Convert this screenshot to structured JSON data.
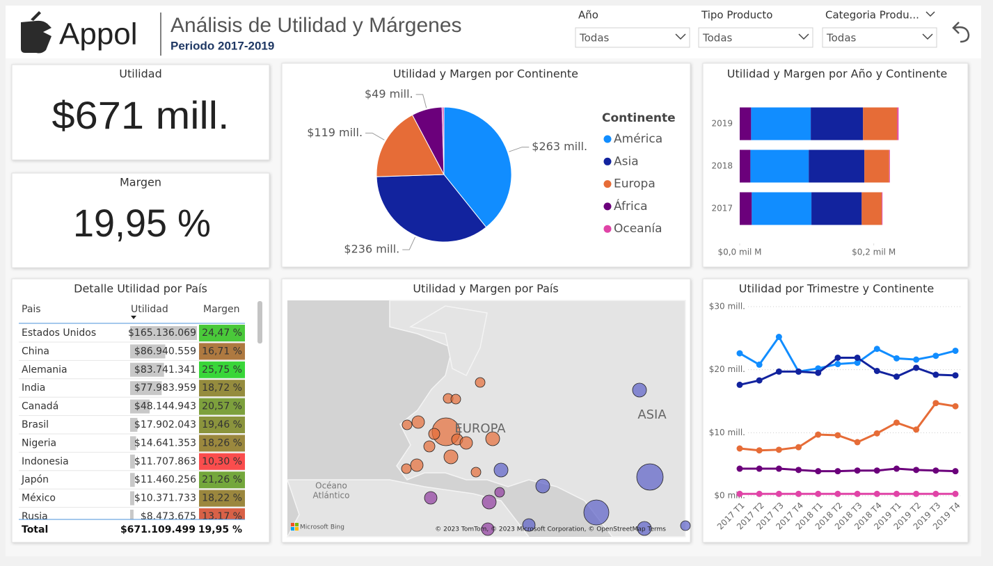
{
  "header": {
    "logo": "Appol",
    "title": "Análisis de Utilidad y Márgenes",
    "subtitle": "Periodo 2017-2019"
  },
  "filters": [
    {
      "label": "Año",
      "value": "Todas"
    },
    {
      "label": "Tipo Producto",
      "value": "Todas"
    },
    {
      "label": "Categoria Produ...",
      "value": "Todas"
    }
  ],
  "kpis": [
    {
      "title": "Utilidad",
      "value": "$671 mill."
    },
    {
      "title": "Margen",
      "value": "19,95 %"
    }
  ],
  "table": {
    "title": "Detalle Utilidad por País",
    "columns": [
      "Pais",
      "Utilidad",
      "Margen"
    ],
    "rows": [
      {
        "pais": "Estados Unidos",
        "utilidad": {
          "value": 165136069,
          "label": "$165.136.069"
        },
        "margen": {
          "value": 24.47,
          "label": "24,47 %"
        }
      },
      {
        "pais": "China",
        "utilidad": {
          "value": 86940559,
          "label": "$86.940.559"
        },
        "margen": {
          "value": 16.71,
          "label": "16,71 %"
        }
      },
      {
        "pais": "Alemania",
        "utilidad": {
          "value": 83741341,
          "label": "$83.741.341"
        },
        "margen": {
          "value": 25.75,
          "label": "25,75 %"
        }
      },
      {
        "pais": "India",
        "utilidad": {
          "value": 77983959,
          "label": "$77.983.959"
        },
        "margen": {
          "value": 18.72,
          "label": "18,72 %"
        }
      },
      {
        "pais": "Canadá",
        "utilidad": {
          "value": 48144943,
          "label": "$48.144.943"
        },
        "margen": {
          "value": 20.57,
          "label": "20,57 %"
        }
      },
      {
        "pais": "Brasil",
        "utilidad": {
          "value": 17902043,
          "label": "$17.902.043"
        },
        "margen": {
          "value": 19.46,
          "label": "19,46 %"
        }
      },
      {
        "pais": "Nigeria",
        "utilidad": {
          "value": 14641353,
          "label": "$14.641.353"
        },
        "margen": {
          "value": 18.26,
          "label": "18,26 %"
        }
      },
      {
        "pais": "Indonesia",
        "utilidad": {
          "value": 11707863,
          "label": "$11.707.863"
        },
        "margen": {
          "value": 10.3,
          "label": "10,30 %"
        }
      },
      {
        "pais": "Japón",
        "utilidad": {
          "value": 11460256,
          "label": "$11.460.256"
        },
        "margen": {
          "value": 21.26,
          "label": "21,26 %"
        }
      },
      {
        "pais": "México",
        "utilidad": {
          "value": 10371733,
          "label": "$10.371.733"
        },
        "margen": {
          "value": 18.22,
          "label": "18,22 %"
        }
      },
      {
        "pais": "Rusia",
        "utilidad": {
          "value": 8473675,
          "label": "$8.473.675"
        },
        "margen": {
          "value": 13.17,
          "label": "13,17 %"
        }
      }
    ],
    "total": [
      "Total",
      "$671.109.499",
      "19,95 %"
    ]
  },
  "map": {
    "title": "Utilidad y Margen por País",
    "labels": [
      "EUROPA",
      "ASIA",
      "Océano",
      "Atlántico"
    ],
    "provider": "Microsoft Bing",
    "attribution": "© 2023 TomTom, © 2023 Microsoft Corporation, © OpenStreetMap  Terms"
  },
  "chart_data": [
    {
      "type": "pie",
      "title": "Utilidad y Margen por Continente",
      "legend_title": "Continente",
      "categories": [
        "América",
        "Asia",
        "Europa",
        "África",
        "Oceanía"
      ],
      "values": [
        263,
        236,
        119,
        49,
        3
      ],
      "value_labels": [
        "$263 mill.",
        "$236 mill.",
        "$119 mill.",
        "$49 mill.",
        null
      ],
      "colors": [
        "#118dff",
        "#12239e",
        "#e66c37",
        "#6b007b",
        "#e044a7"
      ]
    },
    {
      "type": "hbar_stacked",
      "title": "Utilidad y Margen por Año y Continente",
      "categories": [
        "2019",
        "2018",
        "2017"
      ],
      "series": [
        {
          "color": "#6b007b",
          "values": [
            0.017,
            0.016,
            0.018
          ]
        },
        {
          "color": "#118dff",
          "values": [
            0.089,
            0.087,
            0.089
          ]
        },
        {
          "color": "#12239e",
          "values": [
            0.078,
            0.083,
            0.075
          ]
        },
        {
          "color": "#e66c37",
          "values": [
            0.051,
            0.037,
            0.03
          ]
        },
        {
          "color": "#e044a7",
          "values": [
            0.002,
            0.001,
            0.001
          ]
        }
      ],
      "xlim": [
        0,
        0.245
      ],
      "xticks": [
        {
          "value": 0,
          "label": "$0,0 mil M"
        },
        {
          "value": 0.2,
          "label": "$0,2 mil M"
        }
      ]
    },
    {
      "type": "line",
      "title": "Utilidad por Trimestre y Continente",
      "categories": [
        "2017 T1",
        "2017 T2",
        "2017 T3",
        "2017 T4",
        "2018 T1",
        "2018 T2",
        "2018 T3",
        "2018 T4",
        "2019 T1",
        "2019 T2",
        "2019 T3",
        "2019 T4"
      ],
      "series": [
        {
          "color": "#118dff",
          "values": [
            22.6,
            20.8,
            25.2,
            19.7,
            20.2,
            20.9,
            21.1,
            23.3,
            21.8,
            21.6,
            22.2,
            23.0
          ]
        },
        {
          "color": "#12239e",
          "values": [
            17.6,
            18.3,
            19.7,
            19.7,
            19.5,
            21.9,
            21.9,
            19.8,
            18.9,
            20.3,
            19.2,
            19.1
          ]
        },
        {
          "color": "#e66c37",
          "values": [
            7.5,
            7.2,
            7.3,
            7.7,
            9.7,
            9.6,
            8.5,
            9.9,
            11.6,
            10.5,
            14.7,
            14.2
          ]
        },
        {
          "color": "#6b007b",
          "values": [
            4.3,
            4.3,
            4.3,
            4.1,
            3.9,
            3.9,
            4.0,
            4.0,
            4.3,
            4.1,
            4.0,
            3.9
          ]
        },
        {
          "color": "#e044a7",
          "values": [
            0.3,
            0.3,
            0.3,
            0.3,
            0.3,
            0.3,
            0.3,
            0.3,
            0.3,
            0.3,
            0.3,
            0.3
          ]
        }
      ],
      "ylim": [
        0,
        30
      ],
      "yticks": [
        {
          "value": 0,
          "label": "$0 mill."
        },
        {
          "value": 10,
          "label": "$10 mill."
        },
        {
          "value": 20,
          "label": "$20 mill."
        },
        {
          "value": 30,
          "label": "$30 mill."
        }
      ],
      "grid": true
    }
  ]
}
